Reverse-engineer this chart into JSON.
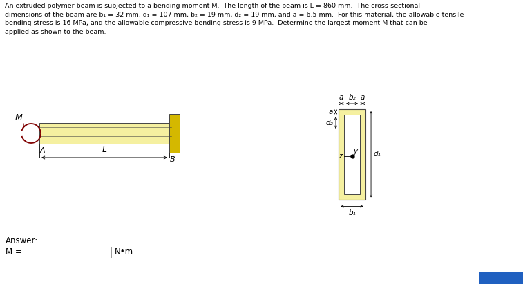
{
  "title_lines": [
    "An extruded polymer beam is subjected to a bending moment M.  The length of the beam is L = 860 mm.  The cross-sectional",
    "dimensions of the beam are b₁ = 32 mm, d₁ = 107 mm, b₂ = 19 mm, d₂ = 19 mm, and a = 6.5 mm.  For this material, the allowable tensile",
    "bending stress is 16 MPa, and the allowable compressive bending stress is 9 MPa.  Determine the largest moment M that can be",
    "applied as shown to the beam."
  ],
  "beam_fill": "#f5f0a0",
  "beam_wall_fill": "#d4b800",
  "beam_outline": "#444444",
  "cross_fill": "#f5f0a0",
  "cross_outline": "#444444",
  "cross_hole_fill": "#ffffff",
  "bg_color": "#ffffff",
  "answer_label": "Answer:",
  "moment_label": "M =",
  "unit_label": "N•m",
  "blue_btn": "#2060c0"
}
